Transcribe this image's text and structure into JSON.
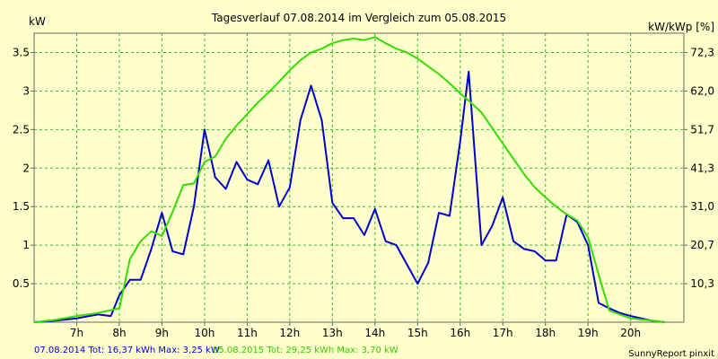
{
  "chart_data": {
    "type": "line",
    "title": "Tagesverlauf 07.08.2014 im Vergleich zum 05.08.2015",
    "ylabel_left": "kW",
    "ylabel_right": "kW/kWp [%]",
    "xlim": [
      6.0,
      21.25
    ],
    "ylim": [
      0,
      3.75
    ],
    "y_ticks_left": [
      "0.5",
      "1",
      "1.5",
      "2",
      "2.5",
      "3",
      "3.5"
    ],
    "y_ticks_left_values": [
      0.5,
      1,
      1.5,
      2,
      2.5,
      3,
      3.5
    ],
    "y_ticks_right": [
      "10,3",
      "20,7",
      "31,0",
      "41,3",
      "51,7",
      "62,0",
      "72,3"
    ],
    "y_ticks_right_values": [
      0.5,
      1,
      1.5,
      2,
      2.5,
      3,
      3.5
    ],
    "x_ticks": [
      "7h",
      "8h",
      "9h",
      "10h",
      "11h",
      "12h",
      "13h",
      "14h",
      "15h",
      "16h",
      "17h",
      "18h",
      "19h",
      "20h"
    ],
    "x_tick_values": [
      7,
      8,
      9,
      10,
      11,
      12,
      13,
      14,
      15,
      16,
      17,
      18,
      19,
      20
    ],
    "grid": true,
    "series": [
      {
        "color": "#0000cc",
        "points": [
          [
            6.0,
            0.0
          ],
          [
            6.5,
            0.02
          ],
          [
            7.0,
            0.05
          ],
          [
            7.5,
            0.1
          ],
          [
            7.8,
            0.08
          ],
          [
            8.0,
            0.35
          ],
          [
            8.25,
            0.55
          ],
          [
            8.5,
            0.55
          ],
          [
            8.75,
            0.95
          ],
          [
            9.0,
            1.42
          ],
          [
            9.25,
            0.92
          ],
          [
            9.5,
            0.88
          ],
          [
            9.75,
            1.5
          ],
          [
            10.0,
            2.5
          ],
          [
            10.25,
            1.88
          ],
          [
            10.5,
            1.73
          ],
          [
            10.75,
            2.08
          ],
          [
            11.0,
            1.85
          ],
          [
            11.25,
            1.79
          ],
          [
            11.5,
            2.1
          ],
          [
            11.75,
            1.5
          ],
          [
            12.0,
            1.75
          ],
          [
            12.25,
            2.62
          ],
          [
            12.5,
            3.07
          ],
          [
            12.75,
            2.62
          ],
          [
            13.0,
            1.55
          ],
          [
            13.25,
            1.35
          ],
          [
            13.5,
            1.35
          ],
          [
            13.75,
            1.13
          ],
          [
            14.0,
            1.47
          ],
          [
            14.25,
            1.05
          ],
          [
            14.5,
            1.0
          ],
          [
            14.75,
            0.75
          ],
          [
            15.0,
            0.5
          ],
          [
            15.25,
            0.77
          ],
          [
            15.5,
            1.42
          ],
          [
            15.75,
            1.38
          ],
          [
            16.0,
            2.35
          ],
          [
            16.2,
            3.25
          ],
          [
            16.5,
            1.0
          ],
          [
            16.75,
            1.25
          ],
          [
            17.0,
            1.62
          ],
          [
            17.25,
            1.05
          ],
          [
            17.5,
            0.95
          ],
          [
            17.75,
            0.92
          ],
          [
            18.0,
            0.8
          ],
          [
            18.25,
            0.8
          ],
          [
            18.5,
            1.4
          ],
          [
            18.75,
            1.3
          ],
          [
            19.0,
            1.0
          ],
          [
            19.25,
            0.25
          ],
          [
            19.5,
            0.18
          ],
          [
            19.75,
            0.12
          ],
          [
            20.0,
            0.08
          ],
          [
            20.5,
            0.02
          ],
          [
            20.8,
            0.0
          ]
        ]
      },
      {
        "color": "#33dd00",
        "points": [
          [
            6.0,
            0.0
          ],
          [
            6.5,
            0.03
          ],
          [
            7.0,
            0.08
          ],
          [
            7.5,
            0.12
          ],
          [
            8.0,
            0.18
          ],
          [
            8.25,
            0.82
          ],
          [
            8.5,
            1.05
          ],
          [
            8.75,
            1.18
          ],
          [
            9.0,
            1.12
          ],
          [
            9.25,
            1.43
          ],
          [
            9.5,
            1.78
          ],
          [
            9.75,
            1.8
          ],
          [
            10.0,
            2.08
          ],
          [
            10.25,
            2.15
          ],
          [
            10.5,
            2.38
          ],
          [
            10.75,
            2.55
          ],
          [
            11.0,
            2.7
          ],
          [
            11.25,
            2.85
          ],
          [
            11.5,
            2.98
          ],
          [
            11.75,
            3.12
          ],
          [
            12.0,
            3.27
          ],
          [
            12.25,
            3.4
          ],
          [
            12.5,
            3.5
          ],
          [
            12.75,
            3.55
          ],
          [
            13.0,
            3.62
          ],
          [
            13.25,
            3.66
          ],
          [
            13.5,
            3.68
          ],
          [
            13.75,
            3.66
          ],
          [
            14.0,
            3.7
          ],
          [
            14.25,
            3.62
          ],
          [
            14.5,
            3.55
          ],
          [
            14.75,
            3.5
          ],
          [
            15.0,
            3.42
          ],
          [
            15.25,
            3.32
          ],
          [
            15.5,
            3.22
          ],
          [
            15.75,
            3.1
          ],
          [
            16.0,
            2.97
          ],
          [
            16.25,
            2.85
          ],
          [
            16.5,
            2.72
          ],
          [
            16.75,
            2.52
          ],
          [
            17.0,
            2.32
          ],
          [
            17.25,
            2.12
          ],
          [
            17.5,
            1.92
          ],
          [
            17.75,
            1.75
          ],
          [
            18.0,
            1.62
          ],
          [
            18.25,
            1.5
          ],
          [
            18.5,
            1.4
          ],
          [
            18.75,
            1.32
          ],
          [
            19.0,
            1.1
          ],
          [
            19.25,
            0.62
          ],
          [
            19.5,
            0.15
          ],
          [
            19.75,
            0.1
          ],
          [
            20.0,
            0.05
          ],
          [
            20.5,
            0.02
          ],
          [
            20.8,
            0.0
          ]
        ]
      }
    ],
    "legend_items": [
      {
        "text": "07.08.2014 Tot: 16,37 kWh Max: 3,25 kW",
        "color": "#0000cc"
      },
      {
        "text": "05.08.2015 Tot: 29,25 kWh Max: 3,70 kW",
        "color": "#33cc00"
      }
    ],
    "credit": "SunnyReport pinxit"
  }
}
